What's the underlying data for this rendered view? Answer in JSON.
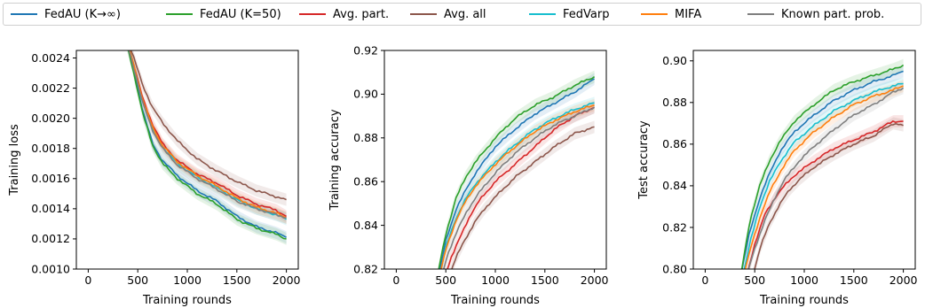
{
  "legend": [
    {
      "name": "FedAU (K→∞)",
      "color": "#1f77b4"
    },
    {
      "name": "FedAU (K=50)",
      "color": "#2ca02c"
    },
    {
      "name": "Avg. part.",
      "color": "#d62728"
    },
    {
      "name": "Avg. all",
      "color": "#8c564b"
    },
    {
      "name": "FedVarp",
      "color": "#17becf"
    },
    {
      "name": "MIFA",
      "color": "#ff7f0e"
    },
    {
      "name": "Known part. prob.",
      "color": "#7f7f7f"
    }
  ],
  "chart_data": [
    {
      "type": "line",
      "title": "",
      "xlabel": "Training rounds",
      "ylabel": "Training loss",
      "xlim": [
        -120,
        2120
      ],
      "ylim": [
        0.001,
        0.00245
      ],
      "xticks": [
        0,
        500,
        1000,
        1500,
        2000
      ],
      "xtick_labels": [
        "0",
        "500",
        "1000",
        "1500",
        "2000"
      ],
      "yticks": [
        0.001,
        0.0012,
        0.0014,
        0.0016,
        0.0018,
        0.002,
        0.0022,
        0.0024
      ],
      "ytick_labels": [
        "0.0010",
        "0.0012",
        "0.0014",
        "0.0016",
        "0.0018",
        "0.0020",
        "0.0022",
        "0.0024"
      ],
      "bands": true,
      "series": [
        {
          "name": "FedAU (K→∞)",
          "x": [
            350,
            450,
            550,
            650,
            750,
            900,
            1100,
            1300,
            1500,
            1700,
            1900,
            2000
          ],
          "y": [
            0.0026,
            0.00235,
            0.00205,
            0.00183,
            0.00172,
            0.00162,
            0.00152,
            0.00145,
            0.00135,
            0.00128,
            0.00124,
            0.00121
          ]
        },
        {
          "name": "FedAU (K=50)",
          "x": [
            350,
            450,
            550,
            650,
            750,
            900,
            1100,
            1300,
            1500,
            1700,
            1900,
            2000
          ],
          "y": [
            0.0026,
            0.00233,
            0.00203,
            0.00182,
            0.0017,
            0.0016,
            0.0015,
            0.00143,
            0.00133,
            0.00127,
            0.00123,
            0.0012
          ]
        },
        {
          "name": "Avg. part.",
          "x": [
            350,
            450,
            550,
            650,
            750,
            900,
            1100,
            1300,
            1500,
            1700,
            1900,
            2000
          ],
          "y": [
            0.0026,
            0.00238,
            0.00213,
            0.00196,
            0.00183,
            0.00172,
            0.00163,
            0.00157,
            0.00149,
            0.00143,
            0.00139,
            0.00135
          ]
        },
        {
          "name": "Avg. all",
          "x": [
            350,
            450,
            550,
            650,
            750,
            900,
            1100,
            1300,
            1500,
            1700,
            1900,
            2000
          ],
          "y": [
            0.0026,
            0.00242,
            0.00222,
            0.00207,
            0.00197,
            0.00185,
            0.00173,
            0.00165,
            0.00158,
            0.00152,
            0.00148,
            0.00146
          ]
        },
        {
          "name": "FedVarp",
          "x": [
            350,
            450,
            550,
            650,
            750,
            900,
            1100,
            1300,
            1500,
            1700,
            1900,
            2000
          ],
          "y": [
            0.0026,
            0.00237,
            0.00211,
            0.00193,
            0.00181,
            0.0017,
            0.00161,
            0.00154,
            0.00146,
            0.0014,
            0.00136,
            0.00133
          ]
        },
        {
          "name": "MIFA",
          "x": [
            350,
            450,
            550,
            650,
            750,
            900,
            1100,
            1300,
            1500,
            1700,
            1900,
            2000
          ],
          "y": [
            0.0026,
            0.00238,
            0.00212,
            0.00194,
            0.00182,
            0.00171,
            0.00162,
            0.00155,
            0.00147,
            0.00141,
            0.00137,
            0.00134
          ]
        },
        {
          "name": "Known part. prob.",
          "x": [
            350,
            450,
            550,
            650,
            750,
            900,
            1100,
            1300,
            1500,
            1700,
            1900,
            2000
          ],
          "y": [
            0.0026,
            0.00236,
            0.0021,
            0.00192,
            0.0018,
            0.00169,
            0.0016,
            0.00153,
            0.00145,
            0.0014,
            0.00136,
            0.00134
          ]
        }
      ]
    },
    {
      "type": "line",
      "title": "",
      "xlabel": "Training rounds",
      "ylabel": "Training accuracy",
      "xlim": [
        -120,
        2120
      ],
      "ylim": [
        0.82,
        0.92
      ],
      "xticks": [
        0,
        500,
        1000,
        1500,
        2000
      ],
      "xtick_labels": [
        "0",
        "500",
        "1000",
        "1500",
        "2000"
      ],
      "yticks": [
        0.82,
        0.84,
        0.86,
        0.88,
        0.9,
        0.92
      ],
      "ytick_labels": [
        "0.82",
        "0.84",
        "0.86",
        "0.88",
        "0.90",
        "0.92"
      ],
      "bands": true,
      "series": [
        {
          "name": "FedAU (K→∞)",
          "x": [
            420,
            500,
            600,
            700,
            800,
            1000,
            1200,
            1400,
            1600,
            1800,
            2000
          ],
          "y": [
            0.815,
            0.833,
            0.847,
            0.856,
            0.864,
            0.876,
            0.884,
            0.891,
            0.896,
            0.901,
            0.907
          ]
        },
        {
          "name": "FedAU (K=50)",
          "x": [
            420,
            500,
            600,
            700,
            800,
            1000,
            1200,
            1400,
            1600,
            1800,
            2000
          ],
          "y": [
            0.818,
            0.836,
            0.852,
            0.862,
            0.869,
            0.88,
            0.889,
            0.895,
            0.899,
            0.904,
            0.908
          ]
        },
        {
          "name": "Avg. part.",
          "x": [
            480,
            550,
            650,
            750,
            850,
            1000,
            1200,
            1400,
            1600,
            1800,
            2000
          ],
          "y": [
            0.815,
            0.825,
            0.835,
            0.845,
            0.852,
            0.86,
            0.868,
            0.876,
            0.884,
            0.89,
            0.894
          ]
        },
        {
          "name": "Avg. all",
          "x": [
            520,
            600,
            700,
            800,
            900,
            1000,
            1200,
            1400,
            1600,
            1800,
            2000
          ],
          "y": [
            0.815,
            0.825,
            0.834,
            0.842,
            0.848,
            0.853,
            0.862,
            0.869,
            0.876,
            0.882,
            0.885
          ]
        },
        {
          "name": "FedVarp",
          "x": [
            430,
            500,
            600,
            700,
            800,
            1000,
            1200,
            1400,
            1600,
            1800,
            2000
          ],
          "y": [
            0.815,
            0.83,
            0.843,
            0.852,
            0.859,
            0.869,
            0.877,
            0.884,
            0.889,
            0.893,
            0.896
          ]
        },
        {
          "name": "MIFA",
          "x": [
            430,
            500,
            600,
            700,
            800,
            1000,
            1200,
            1400,
            1600,
            1800,
            2000
          ],
          "y": [
            0.815,
            0.829,
            0.842,
            0.851,
            0.858,
            0.868,
            0.876,
            0.883,
            0.888,
            0.892,
            0.895
          ]
        },
        {
          "name": "Known part. prob.",
          "x": [
            450,
            520,
            620,
            720,
            820,
            1000,
            1200,
            1400,
            1600,
            1800,
            2000
          ],
          "y": [
            0.815,
            0.827,
            0.838,
            0.847,
            0.854,
            0.864,
            0.873,
            0.88,
            0.886,
            0.89,
            0.894
          ]
        }
      ]
    },
    {
      "type": "line",
      "title": "",
      "xlabel": "Training rounds",
      "ylabel": "Test accuracy",
      "xlim": [
        -120,
        2120
      ],
      "ylim": [
        0.8,
        0.905
      ],
      "xticks": [
        0,
        500,
        1000,
        1500,
        2000
      ],
      "xtick_labels": [
        "0",
        "500",
        "1000",
        "1500",
        "2000"
      ],
      "yticks": [
        0.8,
        0.82,
        0.84,
        0.86,
        0.88,
        0.9
      ],
      "ytick_labels": [
        "0.80",
        "0.82",
        "0.84",
        "0.86",
        "0.88",
        "0.90"
      ],
      "bands": true,
      "series": [
        {
          "name": "FedAU (K→∞)",
          "x": [
            360,
            450,
            550,
            650,
            750,
            900,
            1100,
            1300,
            1500,
            1700,
            1900,
            2000
          ],
          "y": [
            0.797,
            0.818,
            0.834,
            0.846,
            0.856,
            0.866,
            0.874,
            0.881,
            0.886,
            0.89,
            0.893,
            0.895
          ]
        },
        {
          "name": "FedAU (K=50)",
          "x": [
            360,
            450,
            550,
            650,
            750,
            900,
            1100,
            1300,
            1500,
            1700,
            1900,
            2000
          ],
          "y": [
            0.797,
            0.823,
            0.84,
            0.852,
            0.861,
            0.871,
            0.879,
            0.886,
            0.89,
            0.893,
            0.896,
            0.898
          ]
        },
        {
          "name": "Avg. part.",
          "x": [
            420,
            500,
            600,
            700,
            800,
            900,
            1100,
            1300,
            1500,
            1700,
            1900,
            2000
          ],
          "y": [
            0.797,
            0.812,
            0.826,
            0.834,
            0.84,
            0.845,
            0.852,
            0.858,
            0.862,
            0.866,
            0.871,
            0.871
          ]
        },
        {
          "name": "Avg. all",
          "x": [
            480,
            560,
            650,
            750,
            850,
            950,
            1100,
            1300,
            1500,
            1700,
            1900,
            2000
          ],
          "y": [
            0.797,
            0.811,
            0.822,
            0.831,
            0.838,
            0.843,
            0.849,
            0.855,
            0.86,
            0.864,
            0.87,
            0.869
          ]
        },
        {
          "name": "FedVarp",
          "x": [
            380,
            460,
            550,
            650,
            750,
            900,
            1100,
            1300,
            1500,
            1700,
            1900,
            2000
          ],
          "y": [
            0.797,
            0.814,
            0.83,
            0.842,
            0.851,
            0.861,
            0.869,
            0.876,
            0.881,
            0.885,
            0.888,
            0.889
          ]
        },
        {
          "name": "MIFA",
          "x": [
            390,
            470,
            560,
            660,
            760,
            900,
            1100,
            1300,
            1500,
            1700,
            1900,
            2000
          ],
          "y": [
            0.797,
            0.812,
            0.826,
            0.838,
            0.847,
            0.857,
            0.866,
            0.873,
            0.879,
            0.883,
            0.886,
            0.888
          ]
        },
        {
          "name": "Known part. prob.",
          "x": [
            420,
            500,
            600,
            700,
            800,
            950,
            1100,
            1300,
            1500,
            1700,
            1900,
            2000
          ],
          "y": [
            0.797,
            0.81,
            0.823,
            0.834,
            0.843,
            0.852,
            0.859,
            0.867,
            0.874,
            0.879,
            0.885,
            0.887
          ]
        }
      ]
    }
  ]
}
